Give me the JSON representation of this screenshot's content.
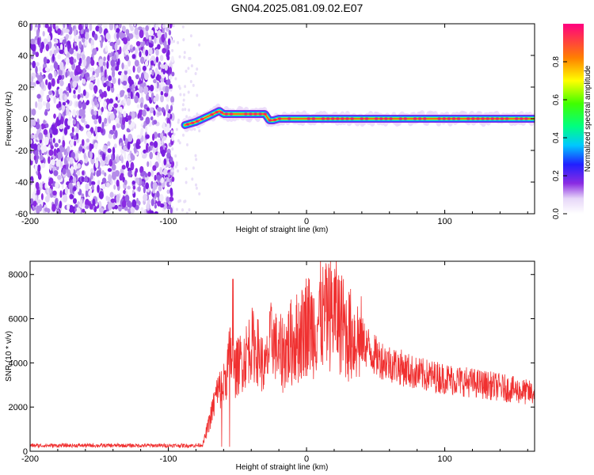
{
  "title": "GN04.2025.081.09.02.E07",
  "chart_data": [
    {
      "type": "heatmap",
      "name": "spectrogram",
      "xlabel": "Height of straight line (km)",
      "ylabel": "Frequency (Hz)",
      "xlim": [
        -200,
        165
      ],
      "ylim": [
        -60,
        60
      ],
      "xticks": [
        -200,
        -100,
        0,
        100
      ],
      "xtick_labels": [
        "-200",
        "-100",
        "0",
        "100"
      ],
      "yticks": [
        60,
        40,
        20,
        0,
        -20,
        -40,
        -60
      ],
      "ytick_labels": [
        "60",
        "40",
        "20",
        "0",
        "-20",
        "-40",
        "-60"
      ],
      "noise_region_x": [
        -200,
        -80
      ],
      "ridge": {
        "x": [
          -88,
          -80,
          -70,
          -63,
          -60,
          -30,
          -27,
          -24,
          -20,
          0,
          165
        ],
        "y": [
          -4,
          -2,
          2,
          5,
          3,
          3,
          -1,
          -1,
          0,
          0,
          0
        ]
      },
      "colorbar": {
        "label": "Normalized spectral amplitude",
        "range": [
          0,
          1
        ],
        "ticks": [
          0.0,
          0.2,
          0.4,
          0.6,
          0.8
        ],
        "tick_labels": [
          "0.0",
          "0.2",
          "0.4",
          "0.6",
          "0.8"
        ]
      }
    },
    {
      "type": "line",
      "name": "snr",
      "xlabel": "Height of straight line (km)",
      "ylabel": "SNR (10 * v/v)",
      "xlim": [
        -200,
        165
      ],
      "ylim": [
        0,
        8600
      ],
      "xticks": [
        -200,
        -100,
        0,
        100
      ],
      "xtick_labels": [
        "-200",
        "-100",
        "0",
        "100"
      ],
      "yticks": [
        0,
        2000,
        4000,
        6000,
        8000
      ],
      "ytick_labels": [
        "0",
        "2000",
        "4000",
        "6000",
        "8000"
      ],
      "color": "#f03030",
      "envelope": {
        "x": [
          -200,
          -80,
          -75,
          -70,
          -65,
          -60,
          -55,
          -52,
          -48,
          -45,
          -40,
          -35,
          -30,
          -25,
          -20,
          -15,
          -10,
          -5,
          0,
          5,
          10,
          15,
          20,
          25,
          30,
          40,
          50,
          60,
          80,
          100,
          120,
          140,
          165
        ],
        "y": [
          260,
          260,
          300,
          1400,
          2600,
          3000,
          4400,
          3600,
          4000,
          4200,
          4900,
          4500,
          3600,
          5300,
          4300,
          4600,
          5000,
          5200,
          5800,
          5600,
          6100,
          6000,
          6400,
          5800,
          5300,
          5000,
          4300,
          4000,
          3500,
          3300,
          3100,
          2900,
          2600
        ]
      }
    }
  ]
}
